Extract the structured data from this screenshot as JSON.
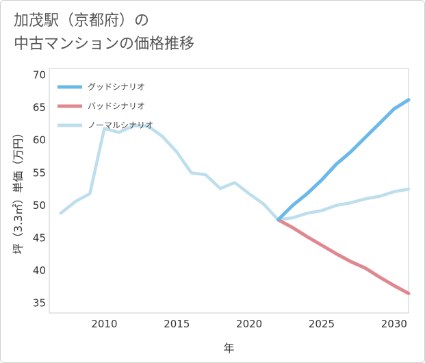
{
  "title": {
    "line1": "加茂駅（京都府）の",
    "line2": "中古マンションの価格推移"
  },
  "chart_data": {
    "type": "line",
    "xlabel": "年",
    "ylabel": "坪（3.3㎡）単価（万円）",
    "xlim": [
      2006.2,
      2031
    ],
    "ylim": [
      33.5,
      71
    ],
    "xticks": [
      2010,
      2015,
      2020,
      2025,
      2030
    ],
    "yticks": [
      35,
      40,
      45,
      50,
      55,
      60,
      65,
      70
    ],
    "grid": true,
    "legend_position": "top-left",
    "series": [
      {
        "name": "グッドシナリオ",
        "color": "#6bb8ea",
        "x": [
          2022,
          2023,
          2024,
          2025,
          2026,
          2027,
          2028,
          2029,
          2030,
          2031
        ],
        "y": [
          47.8,
          50.0,
          51.8,
          53.9,
          56.3,
          58.2,
          60.4,
          62.6,
          64.8,
          66.2
        ]
      },
      {
        "name": "バッドシナリオ",
        "color": "#e08890",
        "x": [
          2022,
          2023,
          2024,
          2025,
          2026,
          2027,
          2028,
          2029,
          2030,
          2031
        ],
        "y": [
          47.8,
          46.6,
          45.2,
          43.9,
          42.6,
          41.4,
          40.4,
          39.0,
          37.7,
          36.5
        ]
      },
      {
        "name": "ノーマルシナリオ",
        "color": "#bddeed",
        "x": [
          2007,
          2008,
          2009,
          2010,
          2011,
          2012,
          2013,
          2014,
          2015,
          2016,
          2017,
          2018,
          2019,
          2020,
          2021,
          2022,
          2023,
          2024,
          2025,
          2026,
          2027,
          2028,
          2029,
          2030,
          2031
        ],
        "y": [
          48.8,
          50.6,
          51.8,
          61.8,
          61.2,
          62.2,
          62.2,
          60.6,
          58.2,
          55.0,
          54.7,
          52.6,
          53.5,
          51.8,
          50.2,
          47.8,
          48.1,
          48.8,
          49.2,
          50.0,
          50.4,
          51.0,
          51.4,
          52.1,
          52.5
        ]
      }
    ]
  }
}
